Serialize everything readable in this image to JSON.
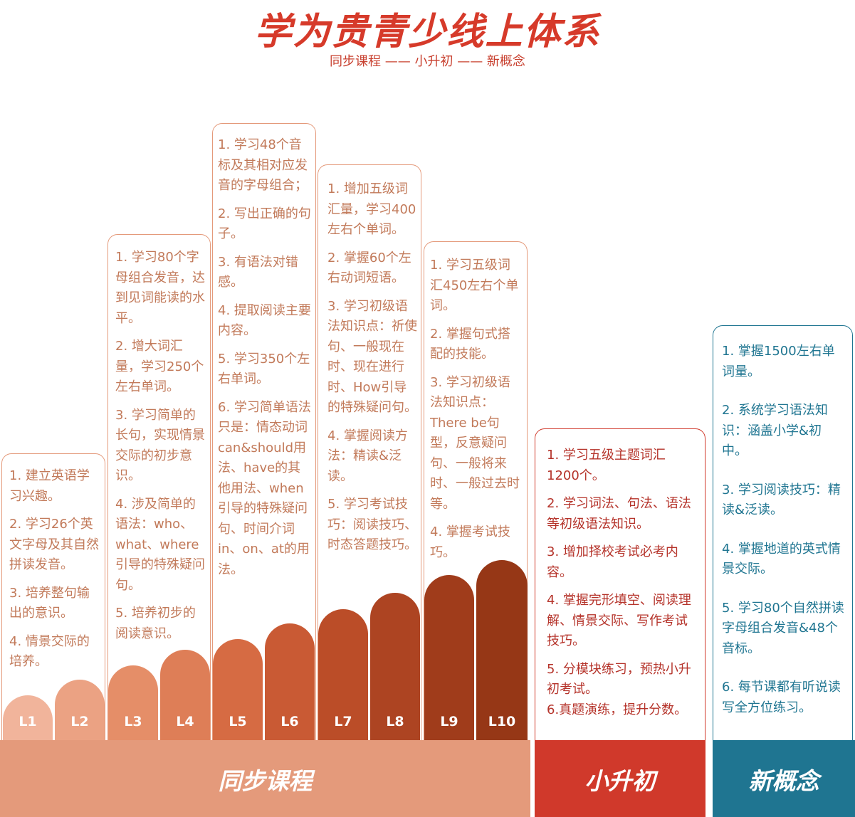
{
  "title": "学为贵青少线上体系",
  "subtitle": "同步课程 —— 小升初 —— 新概念",
  "levels": [
    "L1",
    "L2",
    "L3",
    "L4",
    "L5",
    "L6",
    "L7",
    "L8",
    "L9",
    "L10"
  ],
  "cards": {
    "l1_2": [
      "1. 建立英语学习兴趣。",
      "2. 学习26个英文字母及其自然拼读发音。",
      "3. 培养整句输出的意识。",
      "4. 情景交际的培养。"
    ],
    "l3_4": [
      "1. 学习80个字母组合发音，达到见词能读的水平。",
      "2. 增大词汇量，学习250个左右单词。",
      "3. 学习简单的长句，实现情景交际的初步意识。",
      "4. 涉及简单的语法：who、what、where引导的特殊疑问句。",
      "5. 培养初步的阅读意识。"
    ],
    "l5_6": [
      "1. 学习48个音标及其相对应发音的字母组合；",
      "2. 写出正确的句子。",
      "3. 有语法对错感。",
      "4. 提取阅读主要内容。",
      "5. 学习350个左右单词。",
      "6. 学习简单语法只是：情态动词can&should用法、have的其他用法、when引导的特殊疑问句、时间介词in、on、at的用法。"
    ],
    "l7_8": [
      "1. 增加五级词汇量，学习400左右个单词。",
      "2. 掌握60个左右动词短语。",
      "3. 学习初级语法知识点：祈使句、一般现在时、现在进行时、How引导的特殊疑问句。",
      "4. 掌握阅读方法：精读&泛读。",
      "5. 学习考试技巧：阅读技巧、时态答题技巧。"
    ],
    "l9_10": [
      "1. 学习五级词汇450左右个单词。",
      "2. 掌握句式搭配的技能。",
      "3. 学习初级语法知识点：There be句型，反意疑问句、一般将来时、一般过去时等。",
      "4. 掌握考试技巧。"
    ],
    "xsc": [
      "1. 学习五级主题词汇1200个。",
      "2. 学习词法、句法、语法等初级语法知识。",
      "3. 增加择校考试必考内容。",
      "4. 掌握完形填空、阅读理解、情景交际、写作考试技巧。",
      "5. 分模块练习，预热小升初考试。",
      "6.真题演练，提升分数。"
    ],
    "xgn": [
      "1. 掌握1500左右单词量。",
      "2. 系统学习语法知识：涵盖小学&初中。",
      "3. 学习阅读技巧：精读&泛读。",
      "4. 掌握地道的英式情景交际。",
      "5. 学习80个自然拼读字母组合发音&48个音标。",
      "6. 每节课都有听说读写全方位练习。"
    ]
  },
  "bands": {
    "sync": "同步课程",
    "xsc": "小升初",
    "xgn": "新概念"
  },
  "colors": {
    "title": "#d63a2a",
    "sync_band": "#e49a7b",
    "xsc_band": "#d0392b",
    "xgn_band": "#1f7591",
    "level_fills": [
      "#f1b49b",
      "#eba283",
      "#e58e68",
      "#de7e57",
      "#d66b43",
      "#c95a34",
      "#bb4d28",
      "#ad4422",
      "#a03c1b",
      "#963716"
    ]
  }
}
